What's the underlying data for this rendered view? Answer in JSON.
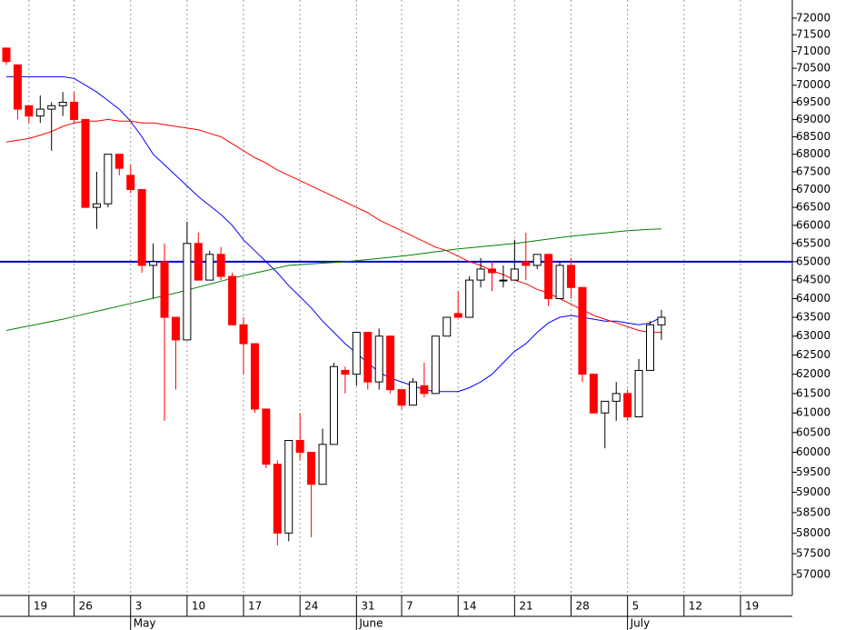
{
  "chart_data": {
    "type": "candlestick",
    "log_scale": true,
    "grid": true,
    "categories": [
      null,
      null,
      "19",
      null,
      null,
      null,
      "26",
      null,
      null,
      null,
      null,
      "3",
      null,
      null,
      null,
      null,
      "10",
      null,
      null,
      null,
      null,
      "17",
      null,
      null,
      null,
      null,
      "24",
      null,
      null,
      null,
      null,
      "31",
      null,
      null,
      null,
      "7",
      null,
      null,
      null,
      null,
      "14",
      null,
      null,
      null,
      null,
      "21",
      null,
      null,
      null,
      null,
      "28",
      null,
      null,
      null,
      null,
      "5",
      null,
      null,
      null,
      null,
      "12",
      null,
      null,
      null,
      null,
      "19",
      null,
      null,
      null,
      null
    ],
    "months": [
      null,
      null,
      null,
      null,
      null,
      null,
      null,
      null,
      null,
      null,
      null,
      "May",
      null,
      null,
      null,
      null,
      null,
      null,
      null,
      null,
      null,
      null,
      null,
      null,
      null,
      null,
      null,
      null,
      null,
      null,
      null,
      "June",
      null,
      null,
      null,
      null,
      null,
      null,
      null,
      null,
      null,
      null,
      null,
      null,
      null,
      null,
      null,
      null,
      null,
      null,
      null,
      null,
      null,
      null,
      null,
      "July",
      null,
      null,
      null,
      null,
      null,
      null,
      null,
      null,
      null,
      null,
      null,
      null,
      null,
      null
    ],
    "up_color": "#ffffff",
    "down_color": "#ff0000",
    "open": [
      71100,
      70600,
      69400,
      69100,
      69300,
      69400,
      69500,
      69000,
      66500,
      66600,
      68000,
      67400,
      67000,
      64900,
      65000,
      63500,
      62900,
      65500,
      64500,
      65200,
      64600,
      63300,
      62800,
      61100,
      59700,
      58000,
      60300,
      60000,
      59200,
      60200,
      62100,
      62000,
      63100,
      61800,
      63000,
      61600,
      61200,
      61700,
      61500,
      63000,
      63600,
      63500,
      64500,
      64800,
      64500,
      64500,
      65000,
      64900,
      65200,
      64000,
      64900,
      64300,
      62000,
      61000,
      61300,
      61500,
      60900,
      62100,
      63300,
      null,
      null,
      null,
      null,
      null,
      null,
      null,
      null,
      null,
      null,
      null
    ],
    "high": [
      71100,
      70600,
      69400,
      69700,
      69500,
      69800,
      69800,
      69000,
      67500,
      68000,
      68000,
      67700,
      67000,
      65500,
      65500,
      63500,
      66100,
      65800,
      65300,
      65400,
      64700,
      63500,
      62800,
      61100,
      59800,
      60300,
      61000,
      60000,
      60600,
      62300,
      62200,
      63100,
      63100,
      63200,
      63000,
      61600,
      61900,
      62300,
      63000,
      63500,
      64200,
      64600,
      65100,
      65000,
      64900,
      65600,
      65800,
      65200,
      65200,
      65000,
      65100,
      64300,
      62000,
      61300,
      61800,
      61600,
      62400,
      63400,
      63700,
      null,
      null,
      null,
      null,
      null,
      null,
      null,
      null,
      null,
      null,
      null
    ],
    "low": [
      70600,
      69000,
      68900,
      68900,
      68100,
      69100,
      68900,
      66500,
      65900,
      66500,
      67400,
      66900,
      64700,
      64000,
      60800,
      61600,
      62900,
      64500,
      64500,
      64500,
      63300,
      62000,
      61000,
      59600,
      57700,
      57800,
      59800,
      57900,
      59200,
      60200,
      61500,
      61700,
      61600,
      61600,
      61500,
      61100,
      61200,
      61400,
      61500,
      63000,
      63500,
      63500,
      64300,
      64200,
      64300,
      64500,
      64500,
      64800,
      63800,
      64000,
      64000,
      61800,
      61000,
      60100,
      60800,
      60800,
      60900,
      62100,
      62900,
      null,
      null,
      null,
      null,
      null,
      null,
      null,
      null,
      null,
      null,
      null
    ],
    "close": [
      70700,
      69300,
      69100,
      69300,
      69400,
      69500,
      69000,
      66500,
      66600,
      68000,
      67600,
      67000,
      64900,
      65000,
      63500,
      62900,
      65500,
      64500,
      65200,
      64600,
      63300,
      62800,
      61100,
      59700,
      58000,
      60300,
      60000,
      59200,
      60200,
      62200,
      62000,
      63100,
      61800,
      63000,
      61600,
      61200,
      61800,
      61500,
      63000,
      63500,
      63500,
      64500,
      64800,
      64700,
      64500,
      64800,
      64900,
      65200,
      64000,
      64900,
      64300,
      62000,
      61000,
      61300,
      61500,
      60900,
      62100,
      63300,
      63500,
      null,
      null,
      null,
      null,
      null,
      null,
      null,
      null,
      null,
      null,
      null
    ],
    "overlays": [
      {
        "color": "#0000ff",
        "values": [
          70250,
          70250,
          70250,
          70250,
          70250,
          70250,
          70200,
          70000,
          69800,
          69550,
          69300,
          68950,
          68500,
          68000,
          67700,
          67400,
          67100,
          66800,
          66550,
          66300,
          66000,
          65600,
          65300,
          65000,
          64700,
          64350,
          64050,
          63750,
          63400,
          63100,
          62800,
          62550,
          62300,
          62050,
          61900,
          61800,
          61700,
          61600,
          61550,
          61550,
          61550,
          61650,
          61800,
          62000,
          62300,
          62600,
          62800,
          63100,
          63350,
          63500,
          63550,
          63500,
          63450,
          63400,
          63400,
          63350,
          63300,
          63350,
          63500,
          null,
          null,
          null,
          null,
          null,
          null,
          null,
          null,
          null,
          null,
          null
        ]
      },
      {
        "color": "#ff0000",
        "values": [
          68350,
          68400,
          68450,
          68550,
          68650,
          68800,
          68900,
          68950,
          68950,
          69000,
          68950,
          68950,
          68900,
          68900,
          68850,
          68800,
          68750,
          68700,
          68600,
          68500,
          68300,
          68100,
          67900,
          67750,
          67550,
          67400,
          67250,
          67100,
          66950,
          66800,
          66650,
          66500,
          66350,
          66150,
          66000,
          65850,
          65700,
          65550,
          65400,
          65300,
          65150,
          65000,
          64900,
          64750,
          64650,
          64500,
          64400,
          64250,
          64150,
          64000,
          63850,
          63700,
          63550,
          63450,
          63350,
          63250,
          63150,
          63100,
          63100,
          null,
          null,
          null,
          null,
          null,
          null,
          null,
          null,
          null,
          null,
          null
        ]
      },
      {
        "color": "#008000",
        "values": [
          63150,
          63210,
          63270,
          63330,
          63390,
          63450,
          63520,
          63590,
          63660,
          63730,
          63800,
          63870,
          63940,
          64010,
          64080,
          64150,
          64230,
          64310,
          64390,
          64470,
          64550,
          64620,
          64690,
          64760,
          64830,
          64900,
          64920,
          64940,
          64960,
          64980,
          65000,
          65030,
          65060,
          65090,
          65120,
          65150,
          65190,
          65230,
          65270,
          65310,
          65350,
          65380,
          65410,
          65440,
          65470,
          65500,
          65540,
          65580,
          65620,
          65660,
          65700,
          65730,
          65760,
          65790,
          65820,
          65850,
          65870,
          65890,
          65900,
          null,
          null,
          null,
          null,
          null,
          null,
          null,
          null,
          null,
          null,
          null
        ]
      }
    ],
    "hline": {
      "value": 65000,
      "color": "#0000cc"
    },
    "ylim": [
      56500,
      72550
    ],
    "yticks": [
      57000,
      57500,
      58000,
      58500,
      59000,
      59500,
      60000,
      60500,
      61000,
      61500,
      62000,
      62500,
      63000,
      63500,
      64000,
      64500,
      65000,
      65500,
      66000,
      66500,
      67000,
      67500,
      68000,
      68500,
      69000,
      69500,
      70000,
      70500,
      71000,
      71500,
      72000
    ]
  }
}
